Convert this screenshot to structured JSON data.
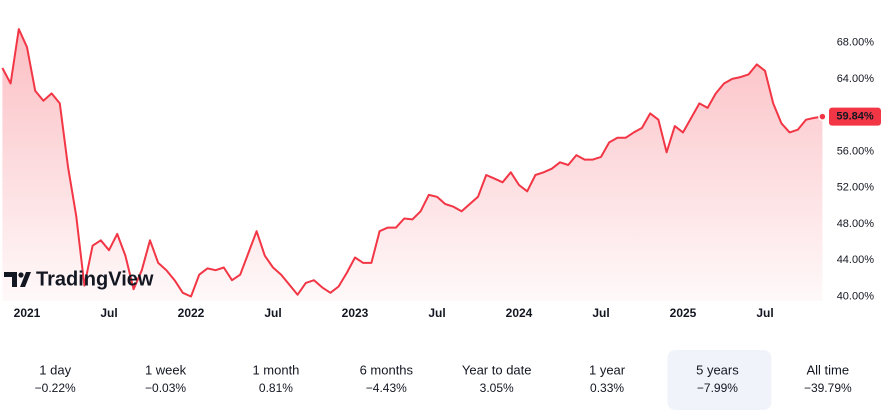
{
  "chart_data": {
    "type": "area",
    "watermark": "TradingView",
    "categories": [
      null,
      null,
      null,
      "2021",
      null,
      null,
      null,
      null,
      null,
      null,
      null,
      null,
      null,
      "Jul",
      null,
      null,
      null,
      null,
      null,
      null,
      null,
      null,
      null,
      "2022",
      null,
      null,
      null,
      null,
      null,
      null,
      null,
      null,
      null,
      "Jul",
      null,
      null,
      null,
      null,
      null,
      null,
      null,
      null,
      null,
      "2023",
      null,
      null,
      null,
      null,
      null,
      null,
      null,
      null,
      null,
      "Jul",
      null,
      null,
      null,
      null,
      null,
      null,
      null,
      null,
      null,
      "2024",
      null,
      null,
      null,
      null,
      null,
      null,
      null,
      null,
      null,
      "Jul",
      null,
      null,
      null,
      null,
      null,
      null,
      null,
      null,
      null,
      "2025",
      null,
      null,
      null,
      null,
      null,
      null,
      null,
      null,
      null,
      "Jul",
      null,
      null,
      null,
      null,
      null,
      null,
      null
    ],
    "series": [
      {
        "color": "#f23645",
        "values": [
          65.2,
          63.5,
          69.5,
          67.5,
          62.7,
          61.6,
          62.4,
          61.3,
          54.3,
          48.9,
          41.2,
          45.6,
          46.2,
          45.1,
          46.9,
          44.5,
          40.8,
          42.9,
          46.2,
          43.7,
          42.9,
          41.8,
          40.4,
          40.0,
          42.4,
          43.1,
          42.9,
          43.2,
          41.8,
          42.4,
          44.8,
          47.2,
          44.5,
          43.2,
          42.4,
          41.3,
          40.2,
          41.5,
          41.8,
          41.0,
          40.4,
          41.1,
          42.6,
          44.3,
          43.7,
          43.7,
          47.2,
          47.6,
          47.6,
          48.6,
          48.5,
          49.4,
          51.2,
          51.0,
          50.2,
          49.9,
          49.4,
          50.2,
          51.0,
          53.4,
          53.0,
          52.6,
          53.7,
          52.3,
          51.6,
          53.4,
          53.7,
          54.1,
          54.8,
          54.5,
          55.6,
          55.1,
          55.1,
          55.4,
          57.0,
          57.5,
          57.5,
          58.1,
          58.6,
          60.2,
          59.5,
          55.9,
          58.8,
          58.1,
          59.7,
          61.3,
          60.8,
          62.4,
          63.5,
          64.0,
          64.2,
          64.5,
          65.6,
          64.9,
          61.3,
          59.1,
          58.1,
          58.4,
          59.5,
          59.7,
          59.84
        ]
      }
    ],
    "last_label": "59.84%",
    "ylim": [
      39.5,
      70.5
    ],
    "yticks": [
      {
        "value": 40,
        "label": "40.00%"
      },
      {
        "value": 44,
        "label": "44.00%"
      },
      {
        "value": 48,
        "label": "48.00%"
      },
      {
        "value": 52,
        "label": "52.00%"
      },
      {
        "value": 56,
        "label": "56.00%"
      },
      {
        "value": 60,
        "label": "60.00%"
      },
      {
        "value": 64,
        "label": "64.00%"
      },
      {
        "value": 68,
        "label": "68.00%"
      }
    ],
    "grid": false,
    "periods": [
      {
        "name": "1 day",
        "change": "−0.22%"
      },
      {
        "name": "1 week",
        "change": "−0.03%"
      },
      {
        "name": "1 month",
        "change": "0.81%"
      },
      {
        "name": "6 months",
        "change": "−4.43%"
      },
      {
        "name": "Year to date",
        "change": "3.05%"
      },
      {
        "name": "1 year",
        "change": "0.33%"
      },
      {
        "name": "5 years",
        "change": "−7.99%"
      },
      {
        "name": "All time",
        "change": "−39.79%"
      }
    ],
    "selected_period": "5 years"
  }
}
